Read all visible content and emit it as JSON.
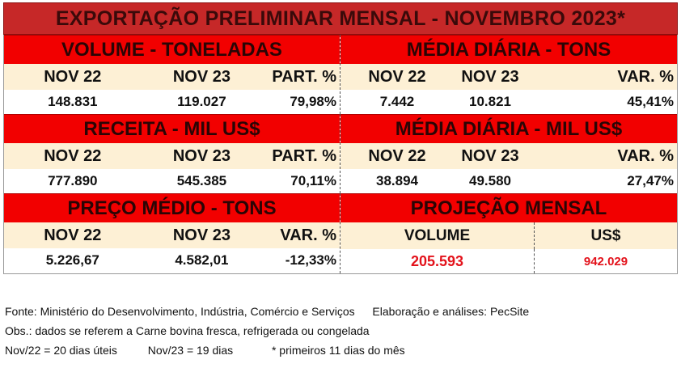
{
  "title": "EXPORTAÇÃO PRELIMINAR MENSAL  - NOVEMBRO 2023*",
  "row1": {
    "left": {
      "section": "VOLUME - TONELADAS",
      "headers": [
        "NOV 22",
        "NOV 23",
        "PART. %"
      ],
      "values": [
        "148.831",
        "119.027",
        "79,98%"
      ]
    },
    "right": {
      "section": "MÉDIA DIÁRIA - TONS",
      "headers": [
        "NOV 22",
        "NOV 23",
        "VAR. %"
      ],
      "values": [
        "7.442",
        "10.821",
        "45,41%"
      ]
    }
  },
  "row2": {
    "left": {
      "section": "RECEITA - MIL US$",
      "headers": [
        "NOV 22",
        "NOV 23",
        "PART. %"
      ],
      "values": [
        "777.890",
        "545.385",
        "70,11%"
      ]
    },
    "right": {
      "section": "MÉDIA DIÁRIA - MIL US$",
      "headers": [
        "NOV 22",
        "NOV 23",
        "VAR. %"
      ],
      "values": [
        "38.894",
        "49.580",
        "27,47%"
      ]
    }
  },
  "row3": {
    "left": {
      "section": "PREÇO MÉDIO - TONS",
      "headers": [
        "NOV 22",
        "NOV 23",
        "VAR. %"
      ],
      "values": [
        "5.226,67",
        "4.582,01",
        "-12,33%"
      ]
    },
    "right": {
      "section": "PROJEÇÃO  MENSAL",
      "headers": [
        "VOLUME",
        "US$"
      ],
      "values": [
        "205.593",
        "942.029"
      ]
    }
  },
  "footer": {
    "line1_source": "Fonte: Ministério do Desenvolvimento, Indústria, Comércio e Serviços",
    "line1_credit": "Elaboração e análises: PecSite",
    "line2": "Obs.: dados se referem a Carne bovina fresca, refrigerada ou congelada",
    "line3_a": "Nov/22 = 20 dias úteis",
    "line3_b": "Nov/23 = 19 dias",
    "line3_c": "* primeiros 11 dias do mês"
  },
  "colors": {
    "title_bg": "#c62828",
    "section_bg": "#f20000",
    "header_bg": "#fdf0d5",
    "highlight": "#e3121b"
  }
}
